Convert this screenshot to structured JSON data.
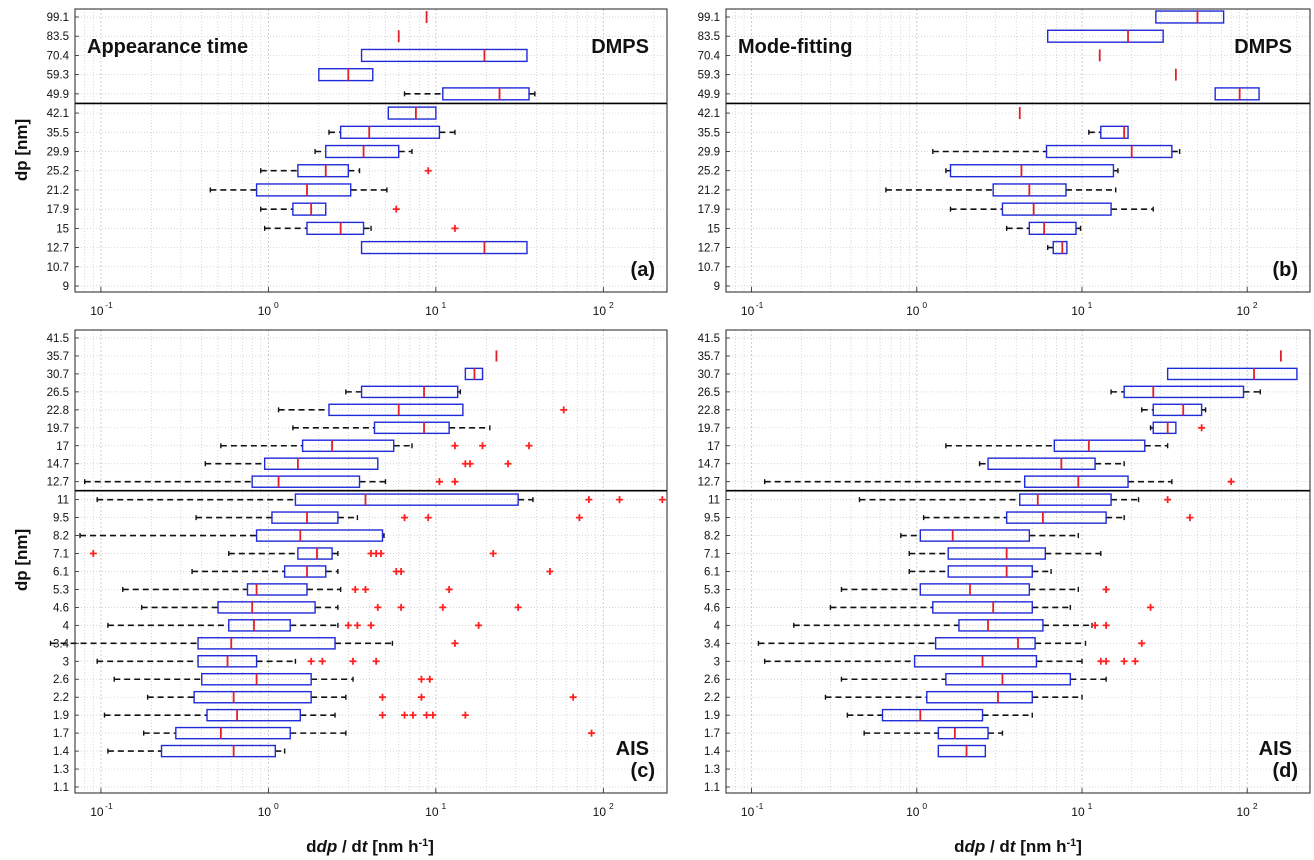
{
  "figure": {
    "ylabel_top": "dp [nm]",
    "ylabel_bottom": "dp [nm]",
    "xlabel_parts": [
      "d",
      "dp",
      " / d",
      "t",
      " [nm h",
      "-1",
      "]"
    ],
    "colors": {
      "box": "#1f2ad8",
      "median": "#e0202a",
      "whisker": "#111111",
      "outlier": "#ff2020",
      "grid": "#c8c8c8"
    }
  },
  "chart_data": [
    {
      "id": "a",
      "type": "boxplot",
      "panel_label": "(a)",
      "title_left": "Appearance time",
      "title_right": "DMPS",
      "x_scale": "log",
      "xlim": [
        0.07,
        240
      ],
      "x_ticks": [
        0.1,
        1,
        10,
        100
      ],
      "x_tick_labels": [
        "10",
        "10",
        "10",
        "10"
      ],
      "x_tick_exps": [
        "-1",
        "0",
        "1",
        "2"
      ],
      "y_tick_labels": [
        "99.1",
        "83.5",
        "70.4",
        "59.3",
        "49.9",
        "42.1",
        "35.5",
        "29.9",
        "25.2",
        "21.2",
        "17.9",
        "15",
        "12.7",
        "10.7",
        "9"
      ],
      "divider_after_index": 4,
      "boxes": [
        {
          "y": "99.1",
          "median": 8.8
        },
        {
          "y": "83.5",
          "median": 6.0
        },
        {
          "y": "70.4",
          "q1": 3.6,
          "median": 19.5,
          "q3": 35
        },
        {
          "y": "59.3",
          "q1": 2.0,
          "median": 3.0,
          "q3": 4.2
        },
        {
          "y": "49.9",
          "wlo": 6.5,
          "q1": 11,
          "median": 24,
          "q3": 36,
          "whi": 39
        },
        {
          "y": "42.1",
          "q1": 5.2,
          "median": 7.6,
          "q3": 10
        },
        {
          "y": "35.5",
          "wlo": 2.3,
          "q1": 2.7,
          "median": 4.0,
          "q3": 10.5,
          "whi": 13
        },
        {
          "y": "29.9",
          "wlo": 1.9,
          "q1": 2.2,
          "median": 3.7,
          "q3": 6.0,
          "whi": 7.2
        },
        {
          "y": "25.2",
          "wlo": 0.9,
          "q1": 1.5,
          "median": 2.2,
          "q3": 3.0,
          "whi": 3.5,
          "outliers": [
            9.0
          ]
        },
        {
          "y": "21.2",
          "wlo": 0.45,
          "q1": 0.85,
          "median": 1.7,
          "q3": 3.1,
          "whi": 5.1
        },
        {
          "y": "17.9",
          "wlo": 0.9,
          "q1": 1.4,
          "median": 1.8,
          "q3": 2.2,
          "outliers": [
            5.8
          ]
        },
        {
          "y": "15",
          "wlo": 0.95,
          "q1": 1.7,
          "median": 2.7,
          "q3": 3.7,
          "whi": 4.1,
          "outliers": [
            13
          ]
        },
        {
          "y": "12.7",
          "q1": 3.6,
          "median": 19.5,
          "q3": 35
        }
      ]
    },
    {
      "id": "b",
      "type": "boxplot",
      "panel_label": "(b)",
      "title_left": "Mode-fitting",
      "title_right": "DMPS",
      "x_scale": "log",
      "xlim": [
        0.07,
        240
      ],
      "x_ticks": [
        0.1,
        1,
        10,
        100
      ],
      "x_tick_labels": [
        "10",
        "10",
        "10",
        "10"
      ],
      "x_tick_exps": [
        "-1",
        "0",
        "1",
        "2"
      ],
      "y_tick_labels": [
        "99.1",
        "83.5",
        "70.4",
        "59.3",
        "49.9",
        "42.1",
        "35.5",
        "29.9",
        "25.2",
        "21.2",
        "17.9",
        "15",
        "12.7",
        "10.7",
        "9"
      ],
      "divider_after_index": 4,
      "boxes": [
        {
          "y": "99.1",
          "q1": 28,
          "median": 50,
          "q3": 72
        },
        {
          "y": "83.5",
          "q1": 6.2,
          "median": 19,
          "q3": 31
        },
        {
          "y": "70.4",
          "median": 12.8
        },
        {
          "y": "59.3",
          "median": 37
        },
        {
          "y": "49.9",
          "q1": 64,
          "median": 90,
          "q3": 118
        },
        {
          "y": "42.1",
          "median": 4.2
        },
        {
          "y": "35.5",
          "wlo": 11,
          "q1": 13,
          "median": 18,
          "q3": 19
        },
        {
          "y": "29.9",
          "wlo": 1.25,
          "q1": 6.1,
          "median": 20,
          "q3": 35,
          "whi": 39
        },
        {
          "y": "25.2",
          "wlo": 1.5,
          "q1": 1.6,
          "median": 4.3,
          "q3": 15.5,
          "whi": 16.5
        },
        {
          "y": "21.2",
          "wlo": 0.65,
          "q1": 2.9,
          "median": 4.8,
          "q3": 8.0,
          "whi": 16
        },
        {
          "y": "17.9",
          "wlo": 1.6,
          "q1": 3.3,
          "median": 5.1,
          "q3": 15,
          "whi": 27
        },
        {
          "y": "15",
          "wlo": 3.5,
          "q1": 4.8,
          "median": 5.9,
          "q3": 9.2,
          "whi": 9.8
        },
        {
          "y": "12.7",
          "wlo": 6.2,
          "q1": 6.7,
          "median": 7.6,
          "q3": 8.1
        }
      ]
    },
    {
      "id": "c",
      "type": "boxplot",
      "panel_label": "(c)",
      "title_left": "",
      "title_right": "AIS",
      "x_scale": "log",
      "xlim": [
        0.07,
        240
      ],
      "x_ticks": [
        0.1,
        1,
        10,
        100
      ],
      "x_tick_labels": [
        "10",
        "10",
        "10",
        "10"
      ],
      "x_tick_exps": [
        "-1",
        "0",
        "1",
        "2"
      ],
      "y_tick_labels": [
        "41.5",
        "35.7",
        "30.7",
        "26.5",
        "22.8",
        "19.7",
        "17",
        "14.7",
        "12.7",
        "11",
        "9.5",
        "8.2",
        "7.1",
        "6.1",
        "5.3",
        "4.6",
        "4",
        "3.4",
        "3",
        "2.6",
        "2.2",
        "1.9",
        "1.7",
        "1.4",
        "1.3",
        "1.1"
      ],
      "divider_after_index": 8,
      "boxes": [
        {
          "y": "35.7",
          "median": 23
        },
        {
          "y": "30.7",
          "q1": 15,
          "median": 17,
          "q3": 19
        },
        {
          "y": "26.5",
          "wlo": 2.9,
          "q1": 3.6,
          "median": 8.5,
          "q3": 13.5,
          "whi": 14
        },
        {
          "y": "22.8",
          "wlo": 1.15,
          "q1": 2.3,
          "median": 6,
          "q3": 14.5,
          "outliers": [
            58
          ]
        },
        {
          "y": "19.7",
          "wlo": 1.4,
          "q1": 4.3,
          "median": 8.5,
          "q3": 12,
          "whi": 21
        },
        {
          "y": "17",
          "wlo": 0.52,
          "q1": 1.6,
          "median": 2.4,
          "q3": 5.6,
          "whi": 7.2,
          "outliers": [
            13,
            19,
            36
          ]
        },
        {
          "y": "14.7",
          "wlo": 0.42,
          "q1": 0.95,
          "median": 1.5,
          "q3": 4.5,
          "outliers": [
            15,
            16,
            27
          ]
        },
        {
          "y": "12.7",
          "wlo": 0.08,
          "q1": 0.8,
          "median": 1.15,
          "q3": 3.5,
          "whi": 5.0,
          "outliers": [
            10.5,
            13
          ]
        },
        {
          "y": "11",
          "wlo": 0.095,
          "q1": 1.45,
          "median": 3.8,
          "q3": 31,
          "whi": 38,
          "outliers": [
            82,
            125,
            225
          ]
        },
        {
          "y": "9.5",
          "wlo": 0.37,
          "q1": 1.05,
          "median": 1.7,
          "q3": 2.6,
          "whi": 3.4,
          "outliers": [
            6.5,
            9,
            72
          ]
        },
        {
          "y": "8.2",
          "wlo": 0.075,
          "q1": 0.85,
          "median": 1.55,
          "q3": 4.8,
          "whi": 4.9
        },
        {
          "y": "7.1",
          "wlo": 0.58,
          "q1": 1.5,
          "median": 1.95,
          "q3": 2.4,
          "whi": 2.6,
          "outliers": [
            0.09,
            4.1,
            4.4,
            4.7,
            22
          ]
        },
        {
          "y": "6.1",
          "wlo": 0.35,
          "q1": 1.25,
          "median": 1.7,
          "q3": 2.2,
          "whi": 2.6,
          "outliers": [
            5.8,
            6.2,
            48
          ]
        },
        {
          "y": "5.3",
          "wlo": 0.135,
          "q1": 0.75,
          "median": 0.85,
          "q3": 1.7,
          "whi": 2.7,
          "outliers": [
            3.3,
            3.8,
            12
          ]
        },
        {
          "y": "4.6",
          "wlo": 0.175,
          "q1": 0.5,
          "median": 0.8,
          "q3": 1.9,
          "whi": 2.6,
          "outliers": [
            4.5,
            6.2,
            11,
            31
          ]
        },
        {
          "y": "4",
          "wlo": 0.11,
          "q1": 0.58,
          "median": 0.82,
          "q3": 1.35,
          "whi": 2.6,
          "outliers": [
            3.0,
            3.4,
            4.1,
            18
          ]
        },
        {
          "y": "3.4",
          "wlo": 0.05,
          "q1": 0.38,
          "median": 0.6,
          "q3": 2.5,
          "whi": 5.5,
          "outliers": [
            13
          ]
        },
        {
          "y": "3",
          "wlo": 0.095,
          "q1": 0.38,
          "median": 0.57,
          "q3": 0.85,
          "whi": 1.45,
          "outliers": [
            1.8,
            2.1,
            3.2,
            4.4
          ]
        },
        {
          "y": "2.6",
          "wlo": 0.12,
          "q1": 0.4,
          "median": 0.85,
          "q3": 1.8,
          "whi": 3.2,
          "outliers": [
            8.2,
            9.2
          ]
        },
        {
          "y": "2.2",
          "wlo": 0.19,
          "q1": 0.36,
          "median": 0.62,
          "q3": 1.8,
          "whi": 2.9,
          "outliers": [
            4.8,
            8.2,
            66
          ]
        },
        {
          "y": "1.9",
          "wlo": 0.105,
          "q1": 0.43,
          "median": 0.65,
          "q3": 1.55,
          "whi": 2.5,
          "outliers": [
            4.8,
            6.5,
            7.3,
            8.8,
            9.6,
            15
          ]
        },
        {
          "y": "1.7",
          "wlo": 0.18,
          "q1": 0.28,
          "median": 0.52,
          "q3": 1.35,
          "whi": 2.9,
          "outliers": [
            85
          ]
        },
        {
          "y": "1.4",
          "wlo": 0.11,
          "q1": 0.23,
          "median": 0.62,
          "q3": 1.1,
          "whi": 1.25
        }
      ]
    },
    {
      "id": "d",
      "type": "boxplot",
      "panel_label": "(d)",
      "title_left": "",
      "title_right": "AIS",
      "x_scale": "log",
      "xlim": [
        0.07,
        240
      ],
      "x_ticks": [
        0.1,
        1,
        10,
        100
      ],
      "x_tick_labels": [
        "10",
        "10",
        "10",
        "10"
      ],
      "x_tick_exps": [
        "-1",
        "0",
        "1",
        "2"
      ],
      "y_tick_labels": [
        "41.5",
        "35.7",
        "30.7",
        "26.5",
        "22.8",
        "19.7",
        "17",
        "14.7",
        "12.7",
        "11",
        "9.5",
        "8.2",
        "7.1",
        "6.1",
        "5.3",
        "4.6",
        "4",
        "3.4",
        "3",
        "2.6",
        "2.2",
        "1.9",
        "1.7",
        "1.4",
        "1.3",
        "1.1"
      ],
      "divider_after_index": 8,
      "boxes": [
        {
          "y": "35.7",
          "median": 160
        },
        {
          "y": "30.7",
          "q1": 33,
          "median": 110,
          "q3": 200
        },
        {
          "y": "26.5",
          "wlo": 15,
          "q1": 18,
          "median": 27,
          "q3": 95,
          "whi": 120
        },
        {
          "y": "22.8",
          "wlo": 23,
          "q1": 27,
          "median": 41,
          "q3": 53,
          "whi": 56
        },
        {
          "y": "19.7",
          "wlo": 26,
          "q1": 27,
          "median": 33,
          "q3": 37,
          "outliers": [
            53
          ]
        },
        {
          "y": "17",
          "wlo": 1.5,
          "q1": 6.8,
          "median": 11,
          "q3": 24,
          "whi": 33
        },
        {
          "y": "14.7",
          "wlo": 2.4,
          "q1": 2.7,
          "median": 7.5,
          "q3": 12,
          "whi": 18
        },
        {
          "y": "12.7",
          "wlo": 0.12,
          "q1": 4.5,
          "median": 9.5,
          "q3": 19,
          "whi": 35,
          "outliers": [
            80
          ]
        },
        {
          "y": "11",
          "wlo": 0.45,
          "q1": 4.2,
          "median": 5.4,
          "q3": 15,
          "whi": 22,
          "outliers": [
            33
          ]
        },
        {
          "y": "9.5",
          "wlo": 1.1,
          "q1": 3.5,
          "median": 5.8,
          "q3": 14,
          "whi": 18,
          "outliers": [
            45
          ]
        },
        {
          "y": "8.2",
          "wlo": 0.8,
          "q1": 1.05,
          "median": 1.65,
          "q3": 4.8,
          "whi": 9.5
        },
        {
          "y": "7.1",
          "wlo": 0.9,
          "q1": 1.55,
          "median": 3.5,
          "q3": 6,
          "whi": 13
        },
        {
          "y": "6.1",
          "wlo": 0.9,
          "q1": 1.55,
          "median": 3.5,
          "q3": 5,
          "whi": 6.5
        },
        {
          "y": "5.3",
          "wlo": 0.35,
          "q1": 1.05,
          "median": 2.1,
          "q3": 4.8,
          "whi": 9.5,
          "outliers": [
            14
          ]
        },
        {
          "y": "4.6",
          "wlo": 0.3,
          "q1": 1.25,
          "median": 2.9,
          "q3": 5.0,
          "whi": 8.5,
          "outliers": [
            26
          ]
        },
        {
          "y": "4",
          "wlo": 0.18,
          "q1": 1.8,
          "median": 2.7,
          "q3": 5.8,
          "whi": 11.5,
          "outliers": [
            12,
            14
          ]
        },
        {
          "y": "3.4",
          "wlo": 0.11,
          "q1": 1.3,
          "median": 4.1,
          "q3": 5.2,
          "whi": 10.5,
          "outliers": [
            23
          ]
        },
        {
          "y": "3",
          "wlo": 0.12,
          "q1": 0.97,
          "median": 2.5,
          "q3": 5.3,
          "whi": 10,
          "outliers": [
            13,
            14,
            18,
            21
          ]
        },
        {
          "y": "2.6",
          "wlo": 0.35,
          "q1": 1.5,
          "median": 3.3,
          "q3": 8.5,
          "whi": 14
        },
        {
          "y": "2.2",
          "wlo": 0.28,
          "q1": 1.15,
          "median": 3.1,
          "q3": 5.0,
          "whi": 10
        },
        {
          "y": "1.9",
          "wlo": 0.38,
          "q1": 0.62,
          "median": 1.05,
          "q3": 2.5,
          "whi": 5
        },
        {
          "y": "1.7",
          "wlo": 0.48,
          "q1": 1.35,
          "median": 1.7,
          "q3": 2.7,
          "whi": 3.3
        },
        {
          "y": "1.4",
          "q1": 1.35,
          "median": 2.0,
          "q3": 2.6
        }
      ]
    }
  ]
}
